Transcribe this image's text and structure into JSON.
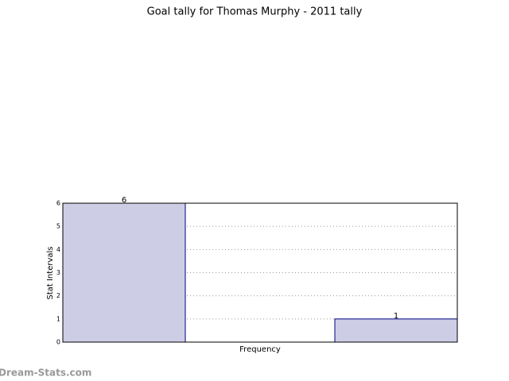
{
  "chart_data": {
    "type": "bar",
    "title": "Goal tally for Thomas Murphy - 2011 tally",
    "x_label": "Frequency",
    "y_label": "Stat Intervals",
    "categories": [
      null,
      null
    ],
    "values": [
      6,
      1
    ],
    "color": "#cdcde6",
    "edge_color": "#000080",
    "ylim": [
      0,
      6
    ],
    "yticks": [
      0,
      1,
      2,
      3,
      4,
      5,
      6
    ],
    "grid": true,
    "watermark": "Dream-Stats.com"
  }
}
